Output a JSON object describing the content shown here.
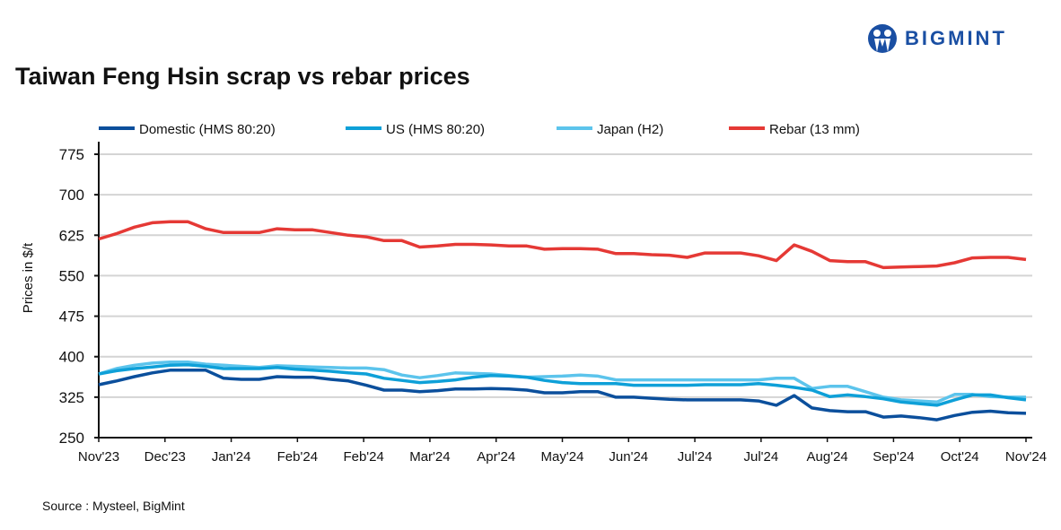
{
  "title": "Taiwan Feng Hsin scrap vs rebar prices",
  "logo": {
    "text": "BIGMINT",
    "color": "#1a4fa3"
  },
  "source": "Source : Mysteel, BigMint",
  "chart_data": {
    "type": "line",
    "title": "Taiwan Feng Hsin scrap vs rebar prices",
    "ylabel": "Prices in $/t",
    "xlabel": "",
    "ylim": [
      250,
      800
    ],
    "yticks": [
      250,
      325,
      400,
      475,
      550,
      625,
      700,
      775
    ],
    "xtick_labels": [
      "Nov'23",
      "Dec'23",
      "Jan'24",
      "Feb'24",
      "Feb'24",
      "Mar'24",
      "Apr'24",
      "May'24",
      "Jun'24",
      "Jul'24",
      "Jul'24",
      "Aug'24",
      "Sep'24",
      "Oct'24",
      "Nov'24"
    ],
    "x_frequency": "weekly",
    "grid": "horizontal",
    "legend_position": "top",
    "series": [
      {
        "name": "Domestic (HMS 80:20)",
        "color": "#0b4f9c",
        "values": [
          348,
          355,
          363,
          370,
          375,
          375,
          375,
          360,
          358,
          358,
          363,
          362,
          362,
          358,
          355,
          347,
          338,
          338,
          335,
          337,
          340,
          340,
          341,
          340,
          338,
          333,
          333,
          335,
          335,
          325,
          325,
          323,
          321,
          320,
          320,
          320,
          320,
          318,
          310,
          328,
          305,
          300,
          298,
          298,
          288,
          290,
          287,
          283,
          291,
          297,
          299,
          296,
          295
        ]
      },
      {
        "name": "US (HMS 80:20)",
        "color": "#0ea0d8",
        "values": [
          368,
          374,
          378,
          381,
          384,
          385,
          382,
          378,
          378,
          378,
          380,
          377,
          375,
          373,
          370,
          368,
          360,
          356,
          352,
          354,
          357,
          362,
          365,
          364,
          362,
          356,
          352,
          350,
          350,
          350,
          347,
          347,
          347,
          347,
          348,
          348,
          348,
          350,
          347,
          343,
          338,
          326,
          329,
          326,
          322,
          316,
          313,
          310,
          320,
          329,
          329,
          324,
          320
        ]
      },
      {
        "name": "Japan (H2)",
        "color": "#5cc4ec",
        "values": [
          368,
          378,
          384,
          388,
          390,
          390,
          386,
          384,
          382,
          380,
          383,
          382,
          381,
          380,
          379,
          379,
          376,
          366,
          361,
          365,
          370,
          369,
          368,
          365,
          362,
          363,
          364,
          366,
          364,
          357,
          357,
          357,
          357,
          357,
          357,
          357,
          357,
          357,
          360,
          360,
          341,
          345,
          345,
          335,
          325,
          320,
          318,
          316,
          330,
          330,
          326,
          325,
          325
        ]
      },
      {
        "name": "Rebar (13 mm)",
        "color": "#e53935",
        "values": [
          618,
          628,
          640,
          648,
          650,
          650,
          637,
          630,
          630,
          630,
          637,
          635,
          635,
          630,
          625,
          622,
          615,
          615,
          603,
          605,
          608,
          608,
          607,
          605,
          605,
          599,
          600,
          600,
          599,
          591,
          591,
          589,
          588,
          584,
          592,
          592,
          592,
          587,
          578,
          607,
          595,
          578,
          576,
          576,
          565,
          566,
          567,
          568,
          574,
          583,
          584,
          584,
          580
        ]
      }
    ]
  }
}
